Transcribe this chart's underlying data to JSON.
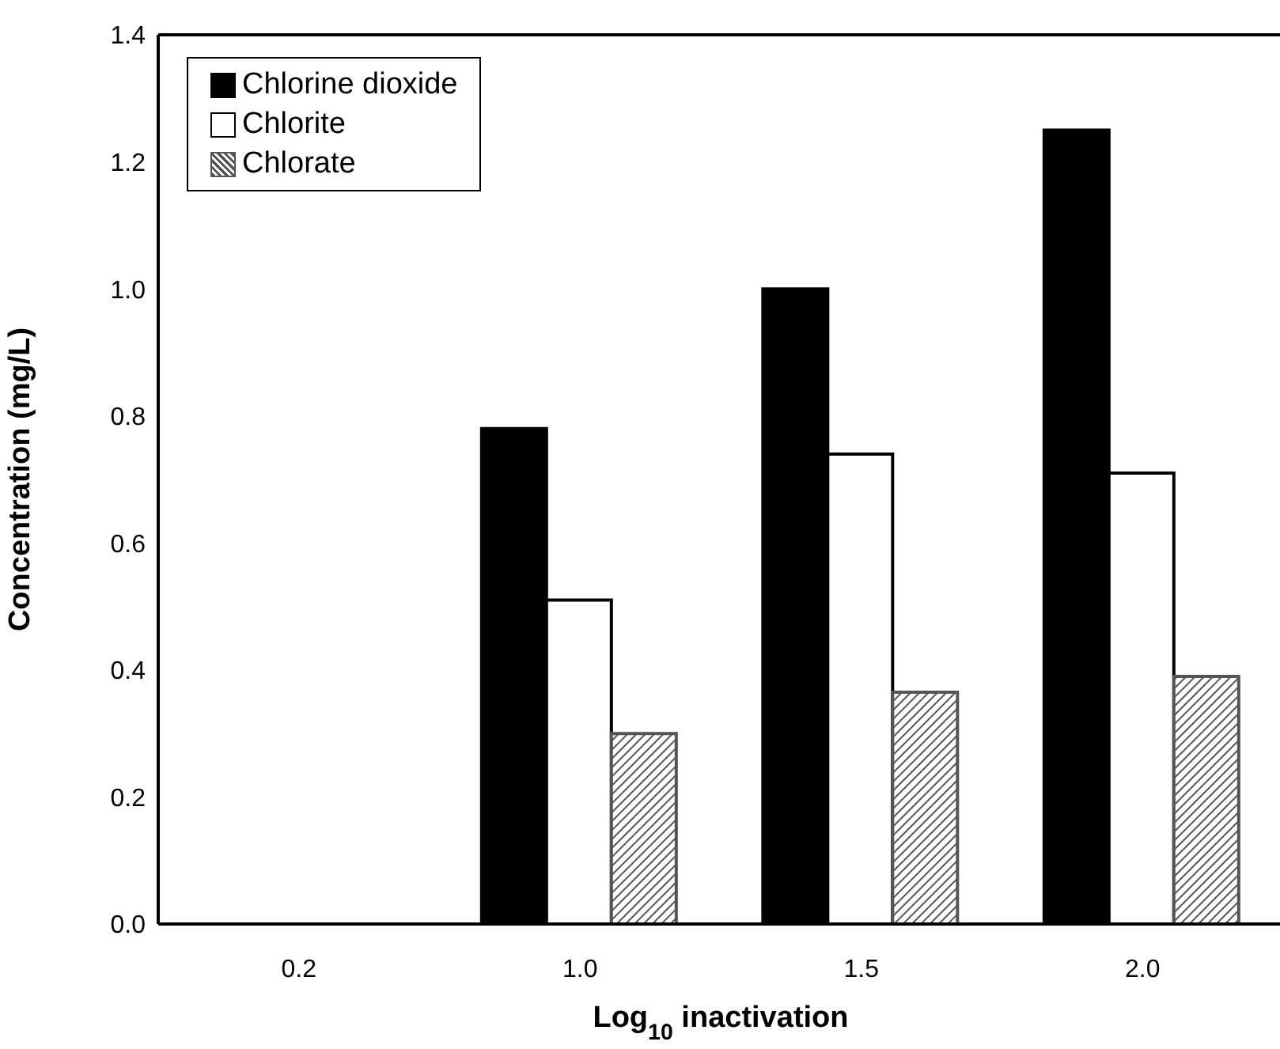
{
  "chart_data": {
    "type": "bar",
    "xlabel": "Log$_{10}$ inactivation",
    "ylabel": "Concentration (mg/L)",
    "categories": [
      "0.2",
      "1.0",
      "1.5",
      "2.0"
    ],
    "series": [
      {
        "name": "Chlorine dioxide",
        "color": "#000000",
        "values": [
          null,
          0.78,
          1.0,
          1.25
        ]
      },
      {
        "name": "Chlorite",
        "color": "#ffffff",
        "values": [
          null,
          0.51,
          0.74,
          0.71
        ]
      },
      {
        "name": "Chlorate",
        "color": "#555555",
        "values": [
          null,
          0.3,
          0.365,
          0.39
        ]
      }
    ],
    "ylim": [
      0,
      1.4
    ],
    "yticks": [
      {
        "value": 0,
        "label": "0.0"
      },
      0.2,
      0.4,
      0.6,
      0.8,
      {
        "value": 1,
        "label": "1.0"
      },
      1.2,
      1.4
    ],
    "legend": "top left",
    "grid": false
  }
}
